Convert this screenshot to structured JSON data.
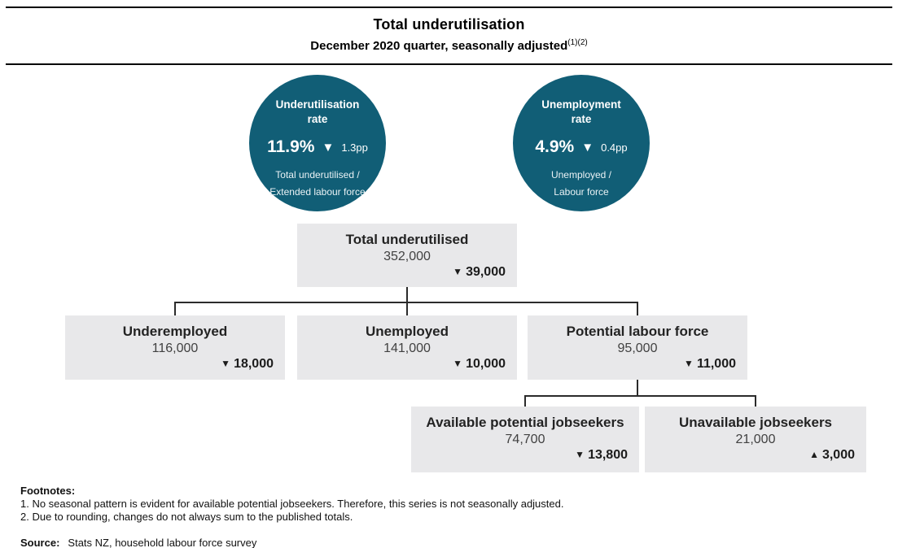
{
  "header": {
    "title": "Total underutilisation",
    "subtitle": "December 2020 quarter, seasonally adjusted",
    "subtitle_superscript": "(1)(2)"
  },
  "colors": {
    "circle_teal": "#115e76",
    "box_gray": "#e8e8ea",
    "line": "#2b2b2b"
  },
  "markers": {
    "down": "▼",
    "up": "▲"
  },
  "gauges": [
    {
      "title": "Underutilisation rate",
      "rate": "11.9%",
      "direction": "down",
      "marker": "▼",
      "change": "1.3pp",
      "formula_line1": "Total underutilised /",
      "formula_line2": "Extended labour force"
    },
    {
      "title": "Unemployment rate",
      "rate": "4.9%",
      "direction": "down",
      "marker": "▼",
      "change": "0.4pp",
      "formula_line1": "Unemployed /",
      "formula_line2": "Labour force"
    }
  ],
  "tree": {
    "root": {
      "label": "Total underutilised",
      "value": "352,000",
      "direction": "down",
      "marker": "▼",
      "change": "39,000"
    },
    "children": [
      {
        "label": "Underemployed",
        "value": "116,000",
        "direction": "down",
        "marker": "▼",
        "change": "18,000"
      },
      {
        "label": "Unemployed",
        "value": "141,000",
        "direction": "down",
        "marker": "▼",
        "change": "10,000"
      },
      {
        "label": "Potential labour force",
        "value": "95,000",
        "direction": "down",
        "marker": "▼",
        "change": "11,000"
      }
    ],
    "grandchildren": [
      {
        "label": "Available potential jobseekers",
        "value": "74,700",
        "direction": "down",
        "marker": "▼",
        "change": "13,800"
      },
      {
        "label": "Unavailable jobseekers",
        "value": "21,000",
        "direction": "up",
        "marker": "▲",
        "change": "3,000"
      }
    ]
  },
  "footnotes": {
    "heading": "Footnotes:",
    "items": [
      "1. No seasonal pattern is evident for available potential jobseekers. Therefore, this series is not seasonally adjusted.",
      "2. Due to rounding, changes do not always sum to the published totals."
    ],
    "source_label": "Source:",
    "source_text": "Stats NZ, household labour force survey"
  }
}
